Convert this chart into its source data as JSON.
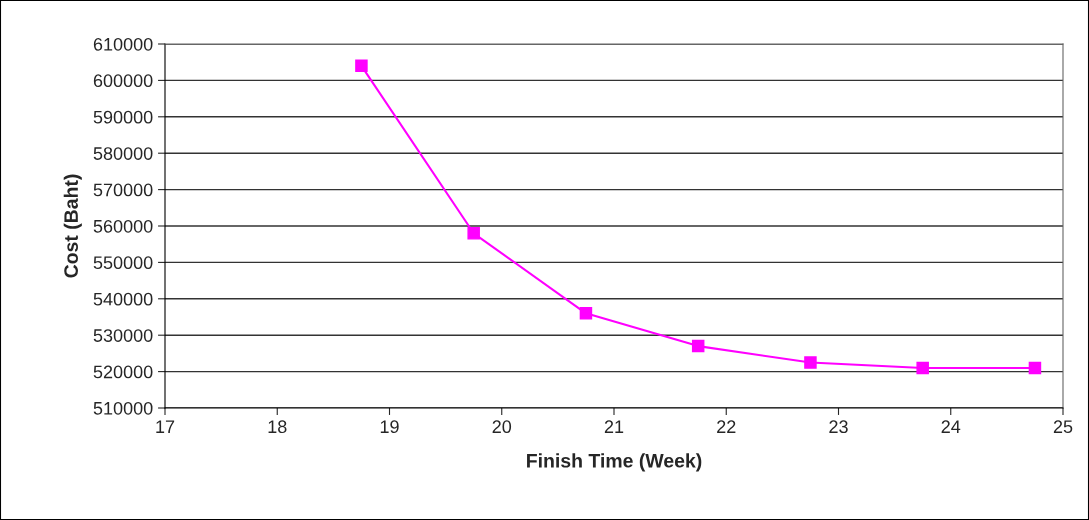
{
  "chart_data": {
    "type": "line",
    "xlabel": "Finish Time (Week)",
    "ylabel": "Cost (Baht)",
    "series": [
      {
        "color": "#ff00ff",
        "x": [
          18.75,
          19.75,
          20.75,
          21.75,
          22.75,
          23.75,
          24.75
        ],
        "values": [
          604000,
          558000,
          536000,
          527000,
          522500,
          521000,
          521000
        ]
      }
    ],
    "xlim": [
      17,
      25
    ],
    "xticks": [
      17,
      18,
      19,
      20,
      21,
      22,
      23,
      24,
      25
    ],
    "ylim": [
      510000,
      610000
    ],
    "yticks": [
      510000,
      520000,
      530000,
      540000,
      550000,
      560000,
      570000,
      580000,
      590000,
      600000,
      610000
    ],
    "grid": "y",
    "marker": "square",
    "line_style": "solid"
  }
}
